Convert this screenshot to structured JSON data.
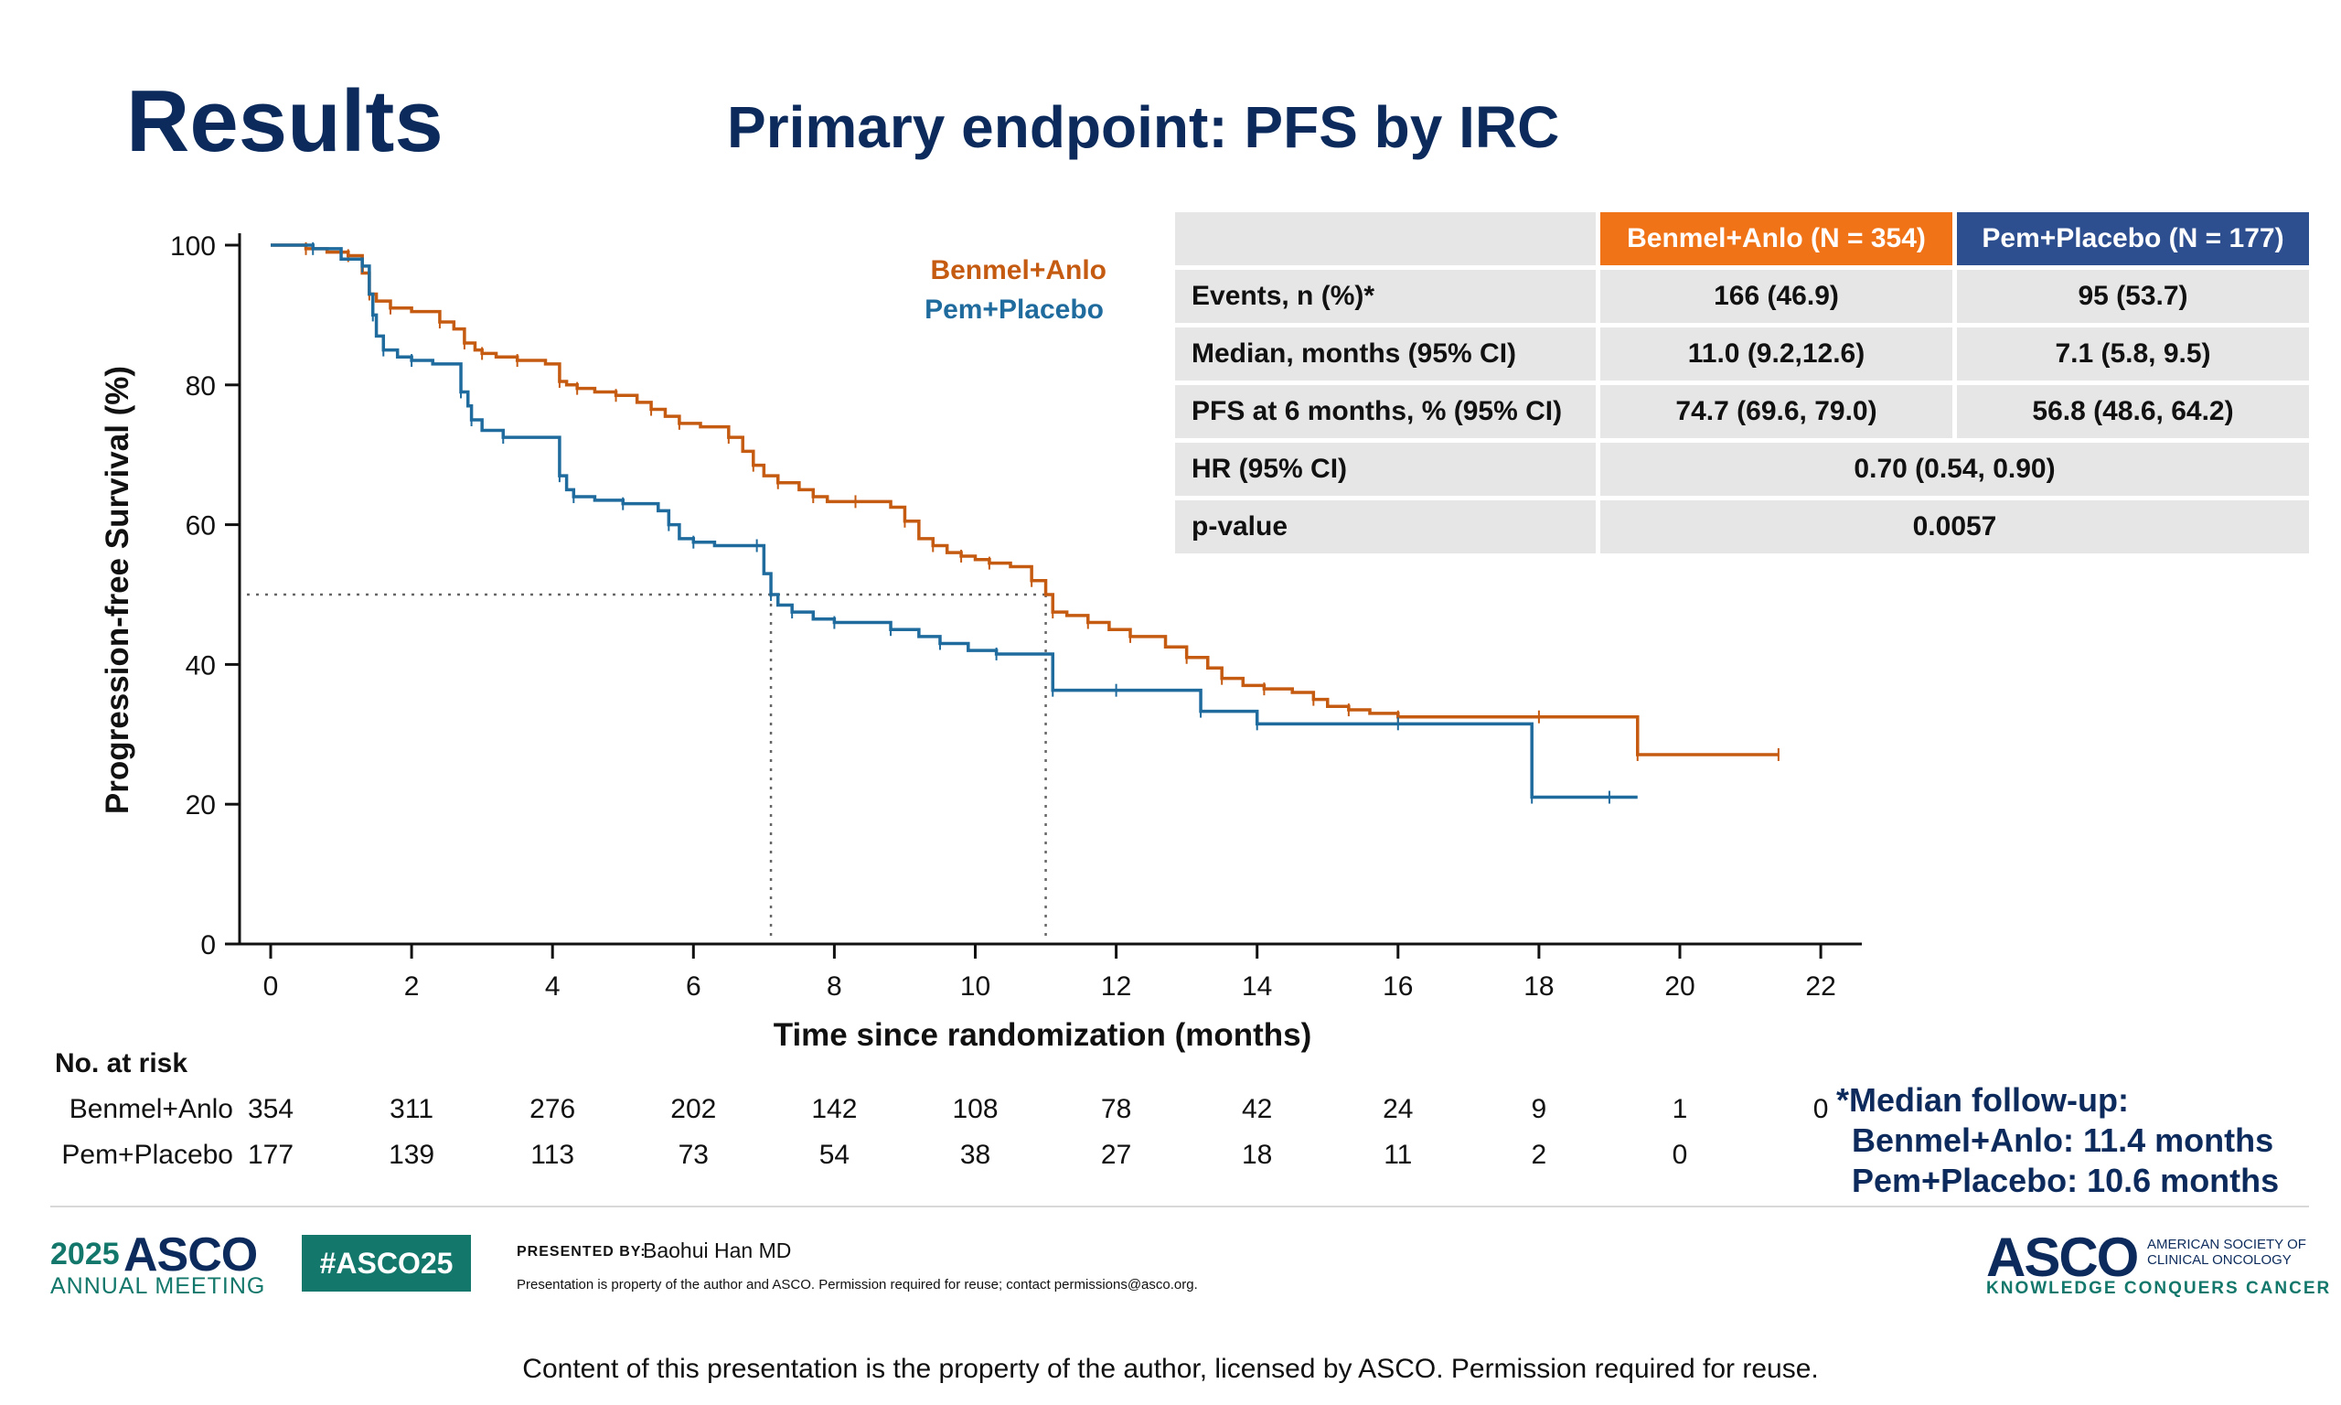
{
  "header": {
    "title": "Results",
    "subtitle": "Primary endpoint: PFS by IRC"
  },
  "chart_data": {
    "type": "line",
    "ylabel": "Progression-free Survival (%)",
    "xlabel": "Time since randomization (months)",
    "xlim": [
      0,
      22
    ],
    "ylim": [
      0,
      100
    ],
    "xticks": [
      "0",
      "2",
      "4",
      "6",
      "8",
      "10",
      "12",
      "14",
      "16",
      "18",
      "20",
      "22"
    ],
    "yticks": [
      "0",
      "20",
      "40",
      "60",
      "80",
      "100"
    ],
    "legend_position": "top-right",
    "median_reference_line": 50,
    "medians": [
      7.1,
      11.0
    ],
    "series": [
      {
        "name": "Benmel+Anlo",
        "color": "#c55a11",
        "x": [
          0,
          0.5,
          0.8,
          1.1,
          1.3,
          1.4,
          1.5,
          1.7,
          2.0,
          2.4,
          2.6,
          2.75,
          2.9,
          3.0,
          3.2,
          3.5,
          3.9,
          4.1,
          4.2,
          4.35,
          4.6,
          4.9,
          5.2,
          5.4,
          5.6,
          5.8,
          6.1,
          6.5,
          6.7,
          6.85,
          7.0,
          7.2,
          7.5,
          7.7,
          7.9,
          8.3,
          8.8,
          9.0,
          9.2,
          9.4,
          9.6,
          9.8,
          10.0,
          10.2,
          10.5,
          10.8,
          11.0,
          11.1,
          11.3,
          11.6,
          11.9,
          12.2,
          12.7,
          13.0,
          13.3,
          13.5,
          13.8,
          14.1,
          14.5,
          14.8,
          15.0,
          15.3,
          15.6,
          16.0,
          17.0,
          18.0,
          19.0,
          19.4,
          21.0,
          21.4
        ],
        "y": [
          100,
          99.5,
          99,
          98.5,
          96,
          93,
          92,
          91,
          90.5,
          89,
          88,
          86,
          85,
          84.5,
          84,
          83.5,
          83,
          80.5,
          80,
          79.5,
          79,
          78.5,
          77.5,
          76.5,
          75.5,
          74.5,
          74,
          72.5,
          70.5,
          68.5,
          67,
          66,
          65,
          64,
          63.3,
          63.3,
          62.5,
          60.5,
          58,
          57,
          56,
          55.5,
          55,
          54.5,
          54,
          52,
          50,
          47.5,
          47,
          46,
          45,
          44,
          42.5,
          41,
          39.5,
          38,
          37,
          36.5,
          36,
          35,
          34,
          33.5,
          33,
          32.5,
          32.5,
          32.5,
          32.5,
          27.1,
          27.1,
          27.1
        ]
      },
      {
        "name": "Pem+Placebo",
        "color": "#1f6b9e",
        "x": [
          0,
          0.6,
          1.0,
          1.3,
          1.4,
          1.45,
          1.5,
          1.6,
          1.8,
          2.0,
          2.3,
          2.7,
          2.8,
          2.85,
          3.0,
          3.3,
          3.9,
          4.1,
          4.2,
          4.3,
          4.6,
          5.0,
          5.5,
          5.65,
          5.8,
          6.0,
          6.3,
          6.9,
          7.0,
          7.1,
          7.2,
          7.4,
          7.7,
          8.0,
          8.4,
          8.8,
          9.2,
          9.5,
          9.9,
          10.3,
          11.0,
          11.1,
          11.5,
          12.0,
          13.0,
          13.2,
          13.5,
          14.0,
          15.0,
          16.0,
          17.0,
          17.9,
          18.0,
          19.0,
          19.4
        ],
        "y": [
          100,
          99.5,
          98,
          97,
          93,
          90,
          87,
          85,
          84,
          83.5,
          83,
          79,
          77,
          75,
          73.5,
          72.5,
          72.5,
          67,
          65,
          64,
          63.5,
          63,
          62,
          60,
          58,
          57.5,
          57,
          57,
          53,
          50,
          48.5,
          47.5,
          46.5,
          46,
          46,
          45,
          44,
          43,
          42,
          41.5,
          41.5,
          36.3,
          36.3,
          36.3,
          36.3,
          33.3,
          33.3,
          31.5,
          31.5,
          31.5,
          31.5,
          21,
          21,
          21,
          21
        ]
      }
    ],
    "stats_table": {
      "headers": [
        "",
        "Benmel+Anlo (N  = 354)",
        "Pem+Placebo (N = 177)"
      ],
      "rows": [
        {
          "label": "Events, n (%)*",
          "a": "166 (46.9)",
          "b": "95 (53.7)"
        },
        {
          "label": "Median, months (95% CI)",
          "a": "11.0 (9.2,12.6)",
          "b": "7.1 (5.8, 9.5)"
        },
        {
          "label": "PFS at 6 months, % (95% CI)",
          "a": "74.7 (69.6, 79.0)",
          "b": "56.8 (48.6, 64.2)"
        }
      ],
      "hr_label": "HR (95% CI)",
      "hr_value": "0.70 (0.54, 0.90)",
      "p_label": "p-value",
      "p_value": "0.0057"
    },
    "risk_table": {
      "header": "No. at risk",
      "rows": [
        {
          "name": "Benmel+Anlo",
          "values": [
            "354",
            "311",
            "276",
            "202",
            "142",
            "108",
            "78",
            "42",
            "24",
            "9",
            "1",
            "0"
          ]
        },
        {
          "name": "Pem+Placebo",
          "values": [
            "177",
            "139",
            "113",
            "73",
            "54",
            "38",
            "27",
            "18",
            "11",
            "2",
            "0"
          ]
        }
      ]
    }
  },
  "followup": {
    "line1": "*Median follow-up:",
    "line2": "Benmel+Anlo: 11.4 months",
    "line3": "Pem+Placebo: 10.6 months"
  },
  "footer": {
    "meeting_year": "2025",
    "meeting_name": "ASCO",
    "meeting_sub": "ANNUAL MEETING",
    "hashtag": "#ASCO25",
    "presented_by_label": "PRESENTED BY:",
    "presenter": "Baohui Han MD",
    "property_note": "Presentation is property of the author and ASCO. Permission required for reuse; contact permissions@asco.org.",
    "asco_logo": "ASCO",
    "society_line1": "AMERICAN SOCIETY OF",
    "society_line2": "CLINICAL ONCOLOGY",
    "tagline": "KNOWLEDGE CONQUERS CANCER",
    "copyright": "Content of this presentation is the property of the author, licensed by ASCO. Permission required for reuse."
  },
  "colors": {
    "navy": "#0c2b5c",
    "orange_header": "#f07318",
    "blue_header": "#2e4f8f",
    "teal": "#13786b"
  }
}
